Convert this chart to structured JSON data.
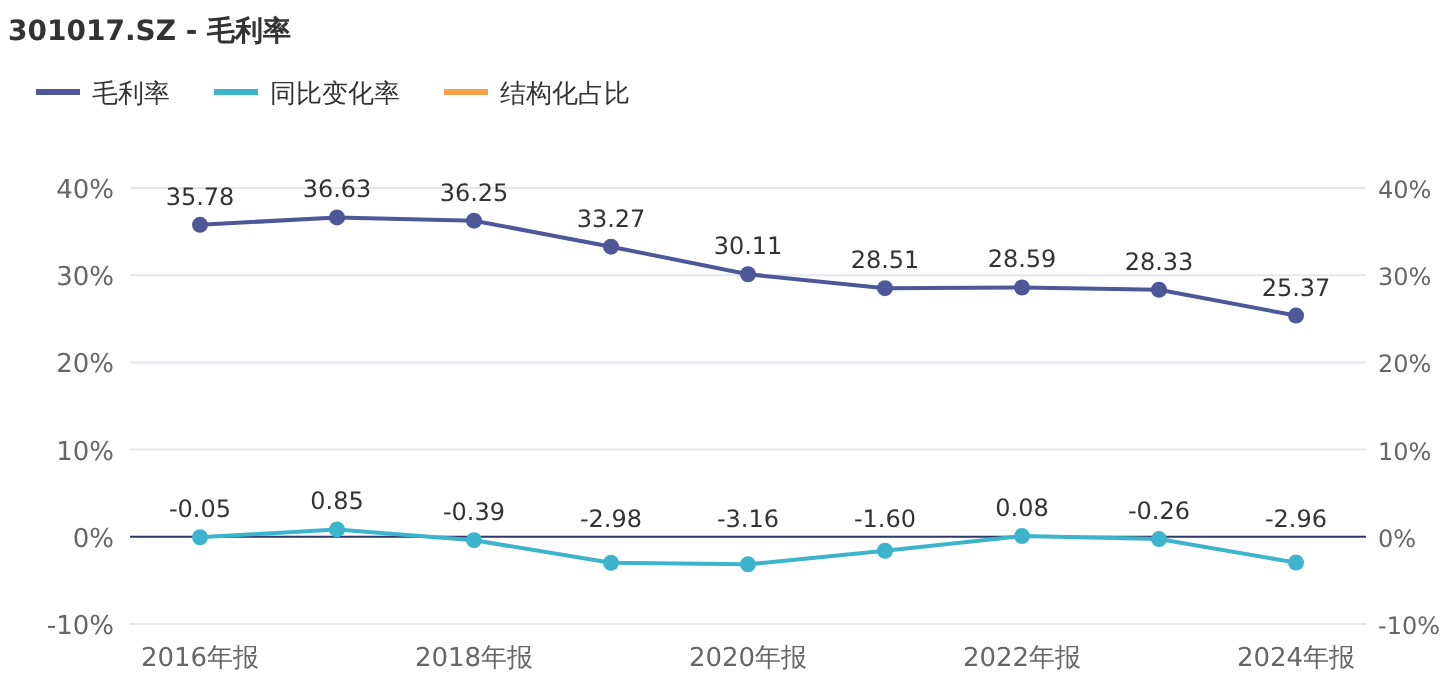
{
  "chart_data": {
    "type": "line",
    "title": "301017.SZ - 毛利率",
    "categories": [
      "2016年报",
      null,
      "2018年报",
      null,
      "2020年报",
      null,
      "2022年报",
      null,
      "2024年报"
    ],
    "series": [
      {
        "name": "毛利率",
        "color": "#4e5797",
        "values": [
          35.78,
          36.63,
          36.25,
          33.27,
          30.11,
          28.51,
          28.59,
          28.33,
          25.37
        ],
        "value_labels": [
          "35.78",
          "36.63",
          "36.25",
          "33.27",
          "30.11",
          "28.51",
          "28.59",
          "28.33",
          "25.37"
        ]
      },
      {
        "name": "同比变化率",
        "color": "#3bb4cc",
        "values": [
          -0.05,
          0.85,
          -0.39,
          -2.98,
          -3.16,
          -1.6,
          0.08,
          -0.26,
          -2.96
        ],
        "value_labels": [
          "-0.05",
          "0.85",
          "-0.39",
          "-2.98",
          "-3.16",
          "-1.60",
          "0.08",
          "-0.26",
          "-2.96"
        ]
      },
      {
        "name": "结构化占比",
        "color": "#f5a04a",
        "values": [
          null,
          null,
          null,
          null,
          null,
          null,
          null,
          null,
          null
        ]
      }
    ],
    "ylim": [
      -10,
      40
    ],
    "yticks": [
      {
        "value": -10,
        "label": "-10%"
      },
      {
        "value": 0,
        "label": "0%"
      },
      {
        "value": 10,
        "label": "10%"
      },
      {
        "value": 20,
        "label": "20%"
      },
      {
        "value": 30,
        "label": "30%"
      },
      {
        "value": 40,
        "label": "40%"
      }
    ],
    "y2lim": [
      -10,
      40
    ],
    "y2ticks": [
      {
        "value": -10,
        "label": "-10%"
      },
      {
        "value": 0,
        "label": "0%"
      },
      {
        "value": 10,
        "label": "10%"
      },
      {
        "value": 20,
        "label": "20%"
      },
      {
        "value": 30,
        "label": "30%"
      },
      {
        "value": 40,
        "label": "40%"
      }
    ],
    "ref_lines": [
      {
        "axis": "y",
        "value": 0,
        "color": "#2f3a6b"
      }
    ],
    "grid": "y",
    "legend": "top left",
    "marker": "circle",
    "line_style": "solid"
  }
}
